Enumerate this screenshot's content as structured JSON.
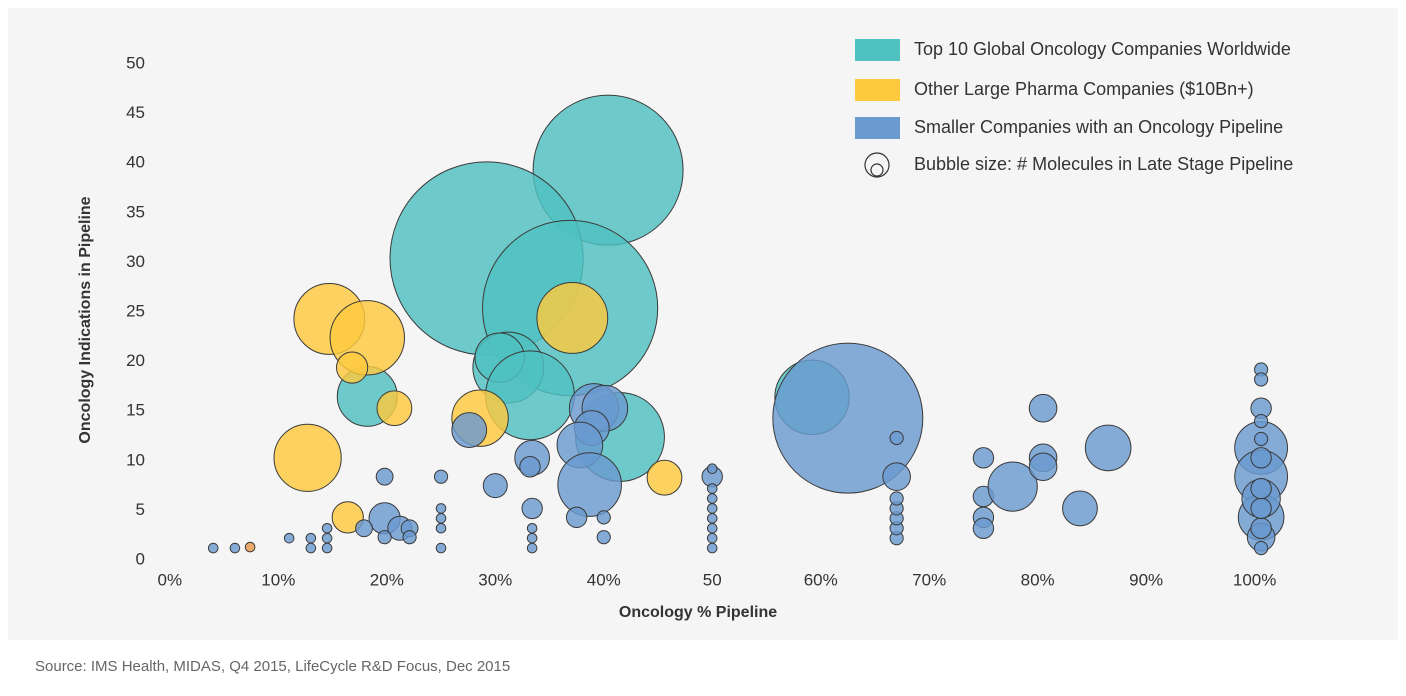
{
  "chart_data": {
    "type": "bubble",
    "xlabel": "Oncology % Pipeline",
    "ylabel": "Oncology Indications in Pipeline",
    "size_label": "Bubble size: # Molecules in Late Stage Pipeline",
    "source": "Source: IMS Health, MIDAS, Q4 2015, LifeCycle R&D Focus, Dec 2015",
    "xlim": [
      -1,
      104
    ],
    "ylim": [
      0,
      50
    ],
    "xticks": [
      {
        "value": 0,
        "label": "0%"
      },
      {
        "value": 10,
        "label": "10%"
      },
      {
        "value": 20,
        "label": "20%"
      },
      {
        "value": 30,
        "label": "30%"
      },
      {
        "value": 40,
        "label": "40%"
      },
      50,
      {
        "value": 60,
        "label": "60%"
      },
      {
        "value": 70,
        "label": "70%"
      },
      {
        "value": 80,
        "label": "80%"
      },
      {
        "value": 90,
        "label": "90%"
      },
      {
        "value": 100,
        "label": "100%"
      }
    ],
    "yticks": [
      0,
      5,
      10,
      15,
      20,
      25,
      30,
      35,
      40,
      45,
      50
    ],
    "legend": "top-right",
    "series": [
      {
        "name": "Top 10 Global Oncology Companies Worldwide",
        "color": "#4fc1c1",
        "x": [
          40.4,
          29.2,
          36.9,
          31.2,
          30.4,
          33.2,
          41.5,
          18.2,
          59.2
        ],
        "y": [
          39.3,
          30.4,
          25.4,
          19.4,
          20.4,
          16.6,
          12.4,
          16.5,
          16.4
        ],
        "sizes": [
          40,
          52,
          47,
          18,
          12,
          23,
          23,
          15,
          19
        ]
      },
      {
        "name": "Other Large Pharma Companies ($10Bn+)",
        "color": "#fdc93e",
        "x": [
          14.7,
          18.2,
          16.8,
          20.7,
          12.7,
          28.6,
          37.1,
          45.6,
          16.4,
          7.4
        ],
        "y": [
          24.3,
          22.4,
          19.4,
          15.3,
          10.3,
          14.3,
          24.4,
          8.3,
          4.3,
          1.3
        ],
        "sizes": [
          18,
          19,
          7,
          8,
          17,
          14,
          18,
          8,
          7,
          1
        ],
        "colors": [
          null,
          null,
          null,
          null,
          null,
          null,
          null,
          null,
          null,
          "#e89a4a"
        ]
      },
      {
        "name": "Smaller Companies with an Oncology Pipeline",
        "color": "#6a9ad0",
        "x": [
          62.5,
          39.1,
          40.1,
          38.9,
          37.8,
          38.7,
          27.6,
          33.4,
          33.2,
          30.0,
          19.8,
          19.8,
          21.2,
          22.1,
          17.9,
          19.8,
          22.1,
          33.4,
          37.5,
          40.0,
          40.0,
          25.0,
          25.0,
          25.0,
          25.0,
          25.0,
          33.4,
          33.4,
          33.4,
          13.0,
          13.0,
          14.5,
          14.5,
          14.5,
          11.0,
          4.0,
          6.0,
          50.0,
          50.0,
          50.0,
          50.0,
          50.0,
          50.0,
          50.0,
          50.0,
          50.0,
          67.0,
          67.0,
          67.0,
          67.0,
          67.0,
          67.0,
          67.0,
          75.0,
          75.0,
          75.0,
          75.0,
          77.7,
          80.5,
          80.5,
          80.5,
          83.9,
          86.5,
          100.6,
          100.6,
          100.6,
          100.6,
          100.6,
          100.6,
          100.6,
          100.6,
          100.6,
          100.6,
          100.6,
          100.6,
          100.6,
          100.6,
          100.6
        ],
        "y": [
          14.3,
          15.3,
          15.3,
          13.3,
          11.6,
          7.6,
          13.1,
          10.3,
          9.4,
          7.5,
          8.4,
          4.2,
          3.2,
          3.2,
          3.2,
          2.3,
          2.3,
          5.2,
          4.3,
          4.3,
          2.3,
          8.4,
          1.2,
          3.2,
          4.2,
          5.2,
          1.2,
          2.2,
          3.2,
          1.2,
          2.2,
          1.2,
          2.2,
          3.2,
          2.2,
          1.2,
          1.2,
          8.4,
          1.2,
          2.2,
          3.2,
          4.2,
          5.2,
          6.2,
          7.2,
          9.2,
          8.4,
          12.3,
          2.2,
          3.2,
          4.2,
          5.2,
          6.2,
          10.3,
          6.4,
          4.3,
          3.2,
          7.4,
          15.3,
          10.3,
          9.4,
          5.2,
          11.3,
          11.3,
          8.4,
          4.3,
          6.2,
          15.3,
          2.3,
          3.2,
          5.2,
          7.2,
          10.3,
          19.2,
          18.2,
          14.0,
          12.2,
          1.2
        ],
        "sizes": [
          40,
          12,
          11,
          8,
          11,
          16,
          8,
          8,
          4,
          5,
          3,
          7,
          5,
          3,
          3,
          2,
          2,
          4,
          4,
          2,
          2,
          2,
          1,
          1,
          1,
          1,
          1,
          1,
          1,
          1,
          1,
          1,
          1,
          1,
          1,
          1,
          1,
          4,
          1,
          1,
          1,
          1,
          1,
          1,
          1,
          1,
          6,
          2,
          2,
          2,
          2,
          2,
          2,
          4,
          4,
          4,
          4,
          12,
          6,
          6,
          6,
          8,
          11,
          13,
          13,
          11,
          9,
          4,
          6,
          4,
          4,
          4,
          4,
          2,
          2,
          2,
          2,
          2
        ]
      }
    ]
  }
}
